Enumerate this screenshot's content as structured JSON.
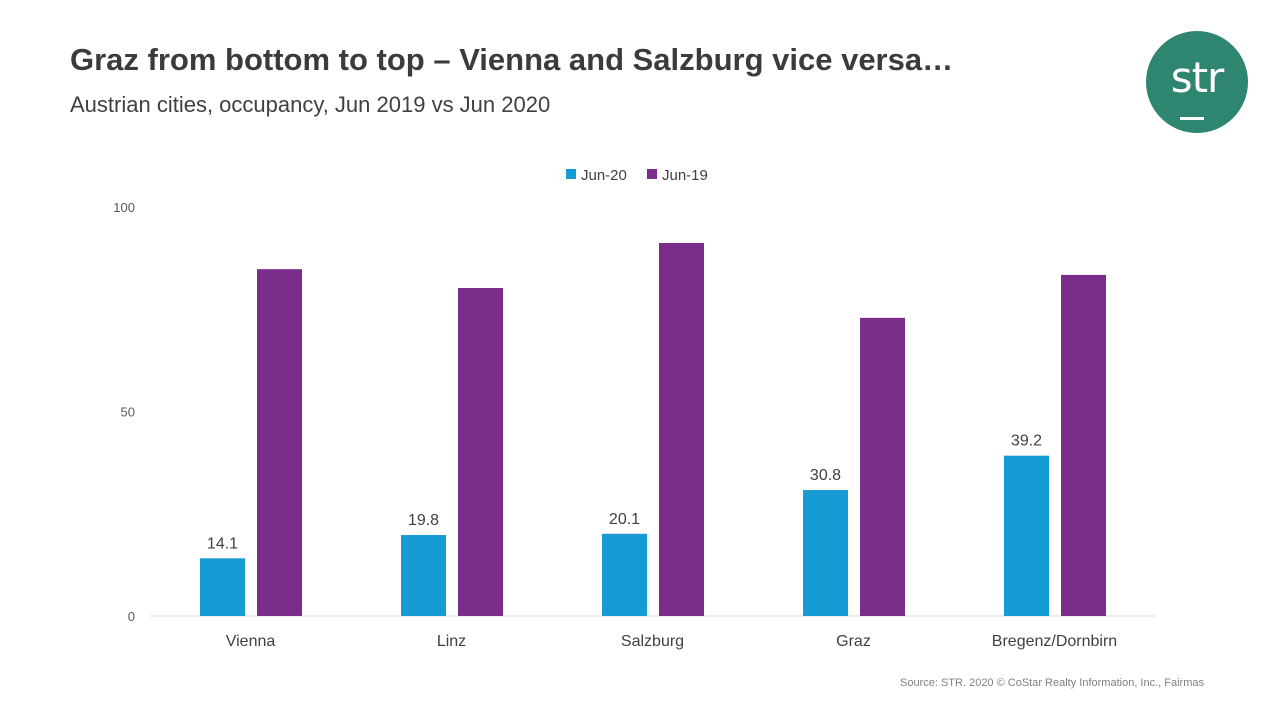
{
  "header": {
    "title": "Graz from bottom to top – Vienna and Salzburg vice versa…",
    "subtitle": "Austrian cities, occupancy, Jun 2019 vs Jun 2020",
    "logo_text": "str"
  },
  "footer": {
    "source": "Source: STR. 2020 © CoStar Realty Information, Inc., Fairmas"
  },
  "chart_data": {
    "type": "bar",
    "title": "",
    "xlabel": "",
    "ylabel": "",
    "ylim": [
      0,
      100
    ],
    "yticks": [
      "0",
      "50",
      "100"
    ],
    "grid": false,
    "legend_position": "top-center",
    "categories": [
      "Vienna",
      "Linz",
      "Salzburg",
      "Graz",
      "Bregenz/Dornbirn"
    ],
    "series": [
      {
        "name": "Jun-20",
        "color": "#169bd5",
        "values": [
          14.1,
          19.8,
          20.1,
          30.8,
          39.2
        ],
        "labels": [
          "14.1",
          "19.8",
          "20.1",
          "30.8",
          "39.2"
        ]
      },
      {
        "name": "Jun-19",
        "color": "#7b2d8b",
        "values": [
          84.8,
          80.2,
          91.2,
          72.9,
          83.4
        ]
      }
    ]
  }
}
